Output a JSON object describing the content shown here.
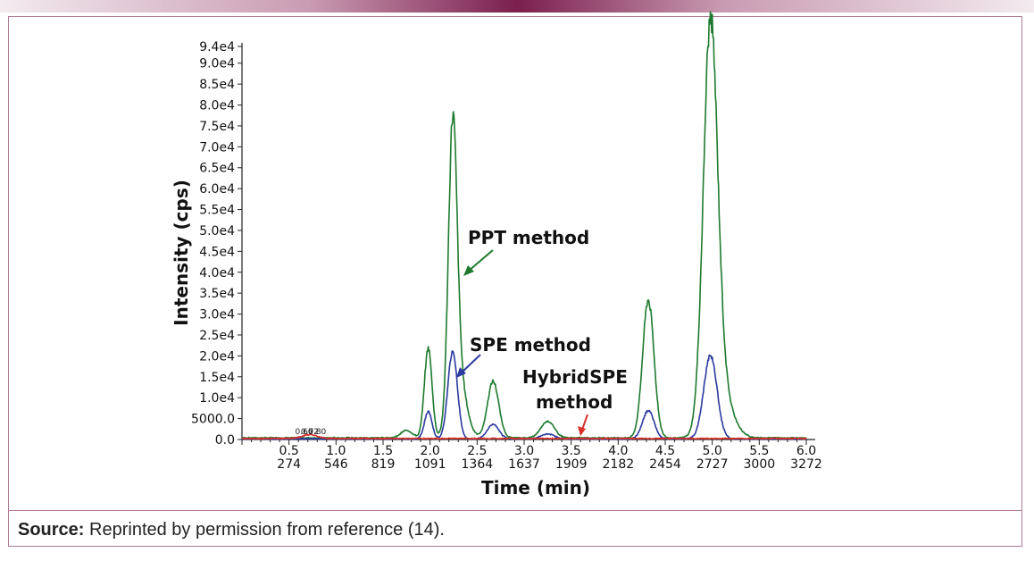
{
  "chart_data": {
    "type": "line",
    "title": "",
    "xlabel": "Time (min)",
    "ylabel": "Intensity (cps)",
    "xlim": [
      0.0,
      6.0
    ],
    "ylim": [
      0,
      94000
    ],
    "y_ticks": [
      {
        "value": 0,
        "label": "0.0"
      },
      {
        "value": 5000,
        "label": "5000.0"
      },
      {
        "value": 10000,
        "label": "1.0e4"
      },
      {
        "value": 15000,
        "label": "1.5e4"
      },
      {
        "value": 20000,
        "label": "2.0e4"
      },
      {
        "value": 25000,
        "label": "2.5e4"
      },
      {
        "value": 30000,
        "label": "3.0e4"
      },
      {
        "value": 35000,
        "label": "3.5e4"
      },
      {
        "value": 40000,
        "label": "4.0e4"
      },
      {
        "value": 45000,
        "label": "4.5e4"
      },
      {
        "value": 50000,
        "label": "5.0e4"
      },
      {
        "value": 55000,
        "label": "5.5e4"
      },
      {
        "value": 60000,
        "label": "6.0e4"
      },
      {
        "value": 65000,
        "label": "6.5e4"
      },
      {
        "value": 70000,
        "label": "7.0e4"
      },
      {
        "value": 75000,
        "label": "7.5e4"
      },
      {
        "value": 80000,
        "label": "8.0e4"
      },
      {
        "value": 85000,
        "label": "8.5e4"
      },
      {
        "value": 90000,
        "label": "9.0e4"
      },
      {
        "value": 94000,
        "label": "9.4e4"
      }
    ],
    "x_ticks": [
      {
        "value": 0.5,
        "label": "0.5",
        "scan": "274"
      },
      {
        "value": 1.0,
        "label": "1.0",
        "scan": "546"
      },
      {
        "value": 1.5,
        "label": "1.5",
        "scan": "819"
      },
      {
        "value": 2.0,
        "label": "2.0",
        "scan": "1091"
      },
      {
        "value": 2.5,
        "label": "2.5",
        "scan": "1364"
      },
      {
        "value": 3.0,
        "label": "3.0",
        "scan": "1637"
      },
      {
        "value": 3.5,
        "label": "3.5",
        "scan": "1909"
      },
      {
        "value": 4.0,
        "label": "4.0",
        "scan": "2182"
      },
      {
        "value": 4.5,
        "label": "4.5",
        "scan": "2454"
      },
      {
        "value": 5.0,
        "label": "5.0",
        "scan": "2727"
      },
      {
        "value": 5.5,
        "label": "5.5",
        "scan": "3000"
      },
      {
        "value": 6.0,
        "label": "6.0",
        "scan": "3272"
      }
    ],
    "peak_labels": [
      "0.66",
      "0.72",
      "0.80"
    ],
    "series": [
      {
        "name": "PPT method",
        "color": "#1e7a2e",
        "baseline": 400,
        "peaks": [
          {
            "t": 1.75,
            "h": 1800,
            "w": 0.06
          },
          {
            "t": 1.98,
            "h": 21500,
            "w": 0.04
          },
          {
            "t": 2.24,
            "h": 66000,
            "w": 0.045
          },
          {
            "t": 2.3,
            "h": 15000,
            "w": 0.08
          },
          {
            "t": 2.67,
            "h": 13500,
            "w": 0.06
          },
          {
            "t": 3.25,
            "h": 4000,
            "w": 0.07
          },
          {
            "t": 4.32,
            "h": 33000,
            "w": 0.06
          },
          {
            "t": 4.98,
            "h": 92000,
            "w": 0.075
          },
          {
            "t": 5.08,
            "h": 12000,
            "w": 0.12
          }
        ]
      },
      {
        "name": "SPE method",
        "color": "#2a3a9e",
        "baseline": 150,
        "peaks": [
          {
            "t": 1.98,
            "h": 6500,
            "w": 0.04
          },
          {
            "t": 2.24,
            "h": 21000,
            "w": 0.05
          },
          {
            "t": 2.67,
            "h": 3500,
            "w": 0.06
          },
          {
            "t": 3.25,
            "h": 1200,
            "w": 0.07
          },
          {
            "t": 4.32,
            "h": 6800,
            "w": 0.06
          },
          {
            "t": 4.98,
            "h": 20000,
            "w": 0.07
          }
        ]
      },
      {
        "name": "HybridSPE method",
        "color": "#d8312a",
        "baseline": 250,
        "peaks": [
          {
            "t": 0.72,
            "h": 900,
            "w": 0.08
          }
        ]
      }
    ],
    "annotations": [
      {
        "text": "PPT method",
        "series": "PPT method"
      },
      {
        "text": "SPE method",
        "series": "SPE method"
      },
      {
        "text": "HybridSPE",
        "series": "HybridSPE method"
      },
      {
        "text": "method",
        "series": "HybridSPE method"
      }
    ]
  },
  "source": {
    "label": "Source:",
    "text": " Reprinted by permission from reference (14)."
  }
}
